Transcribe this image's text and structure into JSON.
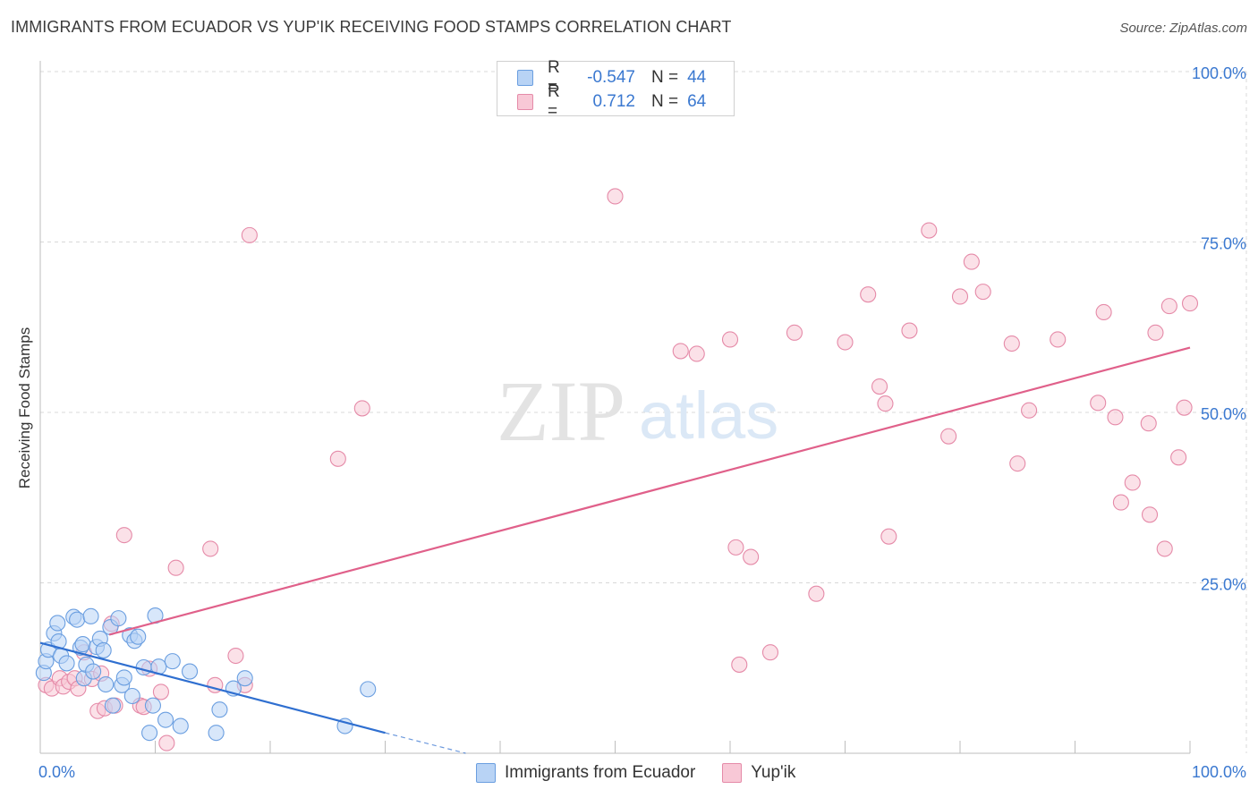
{
  "title": "IMMIGRANTS FROM ECUADOR VS YUP'IK RECEIVING FOOD STAMPS CORRELATION CHART",
  "source": "Source: ZipAtlas.com",
  "watermark": {
    "zip": "ZIP",
    "atlas": "atlas"
  },
  "legend_top": {
    "rows": [
      {
        "r_label": "R =",
        "r_value": "-0.547",
        "n_label": "N =",
        "n_value": "44"
      },
      {
        "r_label": "R =",
        "r_value": "0.712",
        "n_label": "N =",
        "n_value": "64"
      }
    ]
  },
  "legend_bottom": {
    "items": [
      {
        "label": "Immigrants from Ecuador"
      },
      {
        "label": "Yup'ik"
      }
    ]
  },
  "colors": {
    "blue_fill": "#b8d3f5",
    "blue_stroke": "#6a9ee0",
    "blue_line": "#2f6fd0",
    "pink_fill": "#f8c8d6",
    "pink_stroke": "#e58aa8",
    "pink_line": "#e0608a",
    "tick_label": "#3a78d0",
    "grid": "#d8d8d8"
  },
  "chart_data": {
    "type": "scatter",
    "title": "IMMIGRANTS FROM ECUADOR VS YUP'IK RECEIVING FOOD STAMPS CORRELATION CHART",
    "xlabel": "",
    "ylabel": "Receiving Food Stamps",
    "xlim": [
      0,
      100
    ],
    "ylim": [
      0,
      100
    ],
    "x_tick_labels": [
      "0.0%",
      "100.0%"
    ],
    "y_ticks": [
      25,
      50,
      75,
      100
    ],
    "y_tick_labels": [
      "25.0%",
      "50.0%",
      "75.0%",
      "100.0%"
    ],
    "grid": true,
    "legend": "top-center",
    "series": [
      {
        "name": "Immigrants from Ecuador",
        "color": "blue",
        "r": -0.547,
        "n": 44,
        "points": [
          [
            0.3,
            11.8
          ],
          [
            0.5,
            13.5
          ],
          [
            0.7,
            15.2
          ],
          [
            1.2,
            17.6
          ],
          [
            1.5,
            19.1
          ],
          [
            1.6,
            16.4
          ],
          [
            1.8,
            14.3
          ],
          [
            2.3,
            13.2
          ],
          [
            2.9,
            20.0
          ],
          [
            3.2,
            19.6
          ],
          [
            3.5,
            15.5
          ],
          [
            3.7,
            16.0
          ],
          [
            3.8,
            11.0
          ],
          [
            4.0,
            13.0
          ],
          [
            4.4,
            20.1
          ],
          [
            4.6,
            12.0
          ],
          [
            4.9,
            15.6
          ],
          [
            5.2,
            16.8
          ],
          [
            5.5,
            15.1
          ],
          [
            5.7,
            10.1
          ],
          [
            6.1,
            18.5
          ],
          [
            6.3,
            7.0
          ],
          [
            6.8,
            19.8
          ],
          [
            7.1,
            10.0
          ],
          [
            7.3,
            11.1
          ],
          [
            7.8,
            17.3
          ],
          [
            8.0,
            8.4
          ],
          [
            8.2,
            16.5
          ],
          [
            8.5,
            17.1
          ],
          [
            9.0,
            12.6
          ],
          [
            9.5,
            3.0
          ],
          [
            9.8,
            7.0
          ],
          [
            10.0,
            20.2
          ],
          [
            10.3,
            12.7
          ],
          [
            10.9,
            4.9
          ],
          [
            11.5,
            13.5
          ],
          [
            12.2,
            4.0
          ],
          [
            13.0,
            12.0
          ],
          [
            15.3,
            3.0
          ],
          [
            15.6,
            6.4
          ],
          [
            16.8,
            9.5
          ],
          [
            17.8,
            11.0
          ],
          [
            26.5,
            4.0
          ],
          [
            28.5,
            9.4
          ]
        ],
        "trend": {
          "x": [
            0,
            30
          ],
          "y": [
            16.2,
            3.0
          ],
          "dashed_to": [
            37,
            0
          ]
        }
      },
      {
        "name": "Yup'ik",
        "color": "pink",
        "r": 0.712,
        "n": 64,
        "points": [
          [
            0.5,
            10.0
          ],
          [
            1.0,
            9.5
          ],
          [
            1.7,
            11.0
          ],
          [
            2.0,
            9.8
          ],
          [
            2.5,
            10.5
          ],
          [
            3.0,
            11.0
          ],
          [
            3.3,
            9.5
          ],
          [
            3.8,
            14.8
          ],
          [
            4.5,
            10.9
          ],
          [
            5.0,
            6.2
          ],
          [
            5.3,
            11.7
          ],
          [
            5.6,
            6.6
          ],
          [
            6.2,
            19.0
          ],
          [
            6.5,
            7.0
          ],
          [
            7.3,
            32.0
          ],
          [
            8.7,
            7.0
          ],
          [
            9.0,
            6.8
          ],
          [
            9.5,
            12.4
          ],
          [
            10.5,
            9.0
          ],
          [
            11.0,
            1.5
          ],
          [
            11.8,
            27.2
          ],
          [
            14.8,
            30.0
          ],
          [
            15.2,
            10.0
          ],
          [
            17.0,
            14.3
          ],
          [
            17.8,
            10.0
          ],
          [
            18.2,
            76.0
          ],
          [
            25.9,
            43.2
          ],
          [
            28.0,
            50.6
          ],
          [
            50.0,
            81.7
          ],
          [
            55.7,
            59.0
          ],
          [
            57.1,
            58.6
          ],
          [
            60.0,
            60.7
          ],
          [
            60.5,
            30.2
          ],
          [
            60.8,
            13.0
          ],
          [
            61.8,
            28.8
          ],
          [
            63.5,
            14.8
          ],
          [
            65.6,
            61.7
          ],
          [
            67.5,
            23.4
          ],
          [
            70.0,
            60.3
          ],
          [
            72.0,
            67.3
          ],
          [
            73.0,
            53.8
          ],
          [
            73.5,
            51.3
          ],
          [
            73.8,
            31.8
          ],
          [
            75.6,
            62.0
          ],
          [
            77.3,
            76.7
          ],
          [
            79.0,
            46.5
          ],
          [
            80.0,
            67.0
          ],
          [
            81.0,
            72.1
          ],
          [
            82.0,
            67.7
          ],
          [
            84.5,
            60.1
          ],
          [
            85.0,
            42.5
          ],
          [
            86.0,
            50.3
          ],
          [
            88.5,
            60.7
          ],
          [
            92.0,
            51.4
          ],
          [
            92.5,
            64.7
          ],
          [
            93.5,
            49.3
          ],
          [
            94.0,
            36.8
          ],
          [
            95.0,
            39.7
          ],
          [
            96.4,
            48.4
          ],
          [
            96.5,
            35.0
          ],
          [
            97.0,
            61.7
          ],
          [
            97.8,
            30.0
          ],
          [
            98.2,
            65.6
          ],
          [
            99.0,
            43.4
          ],
          [
            99.5,
            50.7
          ],
          [
            100.0,
            66.0
          ]
        ],
        "trend": {
          "x": [
            6,
            100
          ],
          "y": [
            17.4,
            59.5
          ]
        }
      }
    ]
  }
}
